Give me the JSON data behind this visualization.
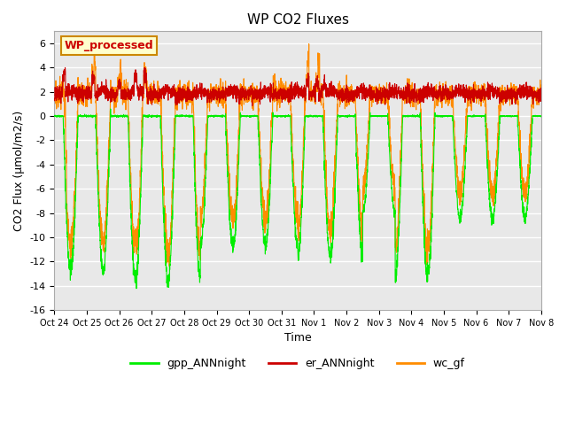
{
  "title": "WP CO2 Fluxes",
  "xlabel": "Time",
  "ylabel": "CO2 Flux (μmol/m2/s)",
  "ylim": [
    -16,
    7
  ],
  "yticks": [
    -16,
    -14,
    -12,
    -10,
    -8,
    -6,
    -4,
    -2,
    0,
    2,
    4,
    6
  ],
  "xtick_positions": [
    0,
    1,
    2,
    3,
    4,
    5,
    6,
    7,
    8,
    9,
    10,
    11,
    12,
    13,
    14,
    15
  ],
  "xtick_labels": [
    "Oct 24",
    "Oct 25",
    "Oct 26",
    "Oct 27",
    "Oct 28",
    "Oct 29",
    "Oct 30",
    "Oct 31",
    "Nov 1",
    "Nov 2",
    "Nov 3",
    "Nov 4",
    "Nov 5",
    "Nov 6",
    "Nov 7",
    "Nov 8"
  ],
  "legend_labels": [
    "gpp_ANNnight",
    "er_ANNnight",
    "wc_gf"
  ],
  "legend_colors": [
    "#00ee00",
    "#cc0000",
    "#ff8c00"
  ],
  "annotation_text": "WP_processed",
  "annotation_color": "#cc0000",
  "annotation_bg": "#ffffcc",
  "annotation_edge": "#cc8800",
  "line_colors": {
    "gpp": "#00ee00",
    "er": "#cc0000",
    "wc": "#ff8c00"
  },
  "bg_color": "#e8e8e8",
  "n_points": 3360,
  "xlim": [
    0,
    15
  ]
}
